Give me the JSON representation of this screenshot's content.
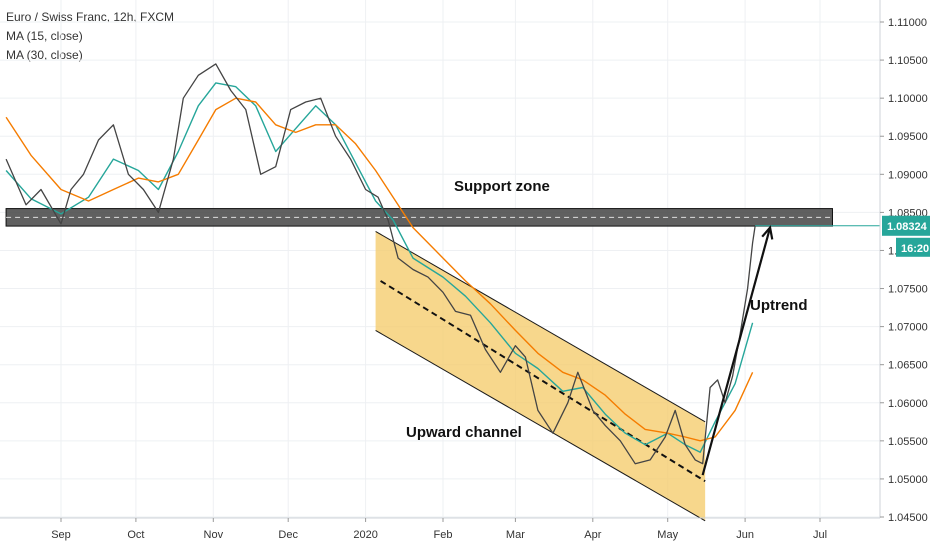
{
  "legend": {
    "symbol": "Euro / Swiss Franc, 12h, FXCM",
    "ma1": "MA (15, close)",
    "ma2": "MA (30, close)"
  },
  "chart_data": {
    "type": "line",
    "title": "Euro / Swiss Franc, 12h, FXCM",
    "x_labels": [
      "Sep",
      "Oct",
      "Nov",
      "Dec",
      "2020",
      "Feb",
      "Mar",
      "Apr",
      "May",
      "Jun",
      "Jul"
    ],
    "y_ticks": [
      "1.04500",
      "1.05000",
      "1.05500",
      "1.06000",
      "1.06500",
      "1.07000",
      "1.07500",
      "1.08000",
      "1.08500",
      "1.09000",
      "1.09500",
      "1.10000",
      "1.10500",
      "1.11000"
    ],
    "ylim": [
      1.045,
      1.113
    ],
    "series": [
      {
        "name": "MA (15, close)",
        "color": "#26a69a",
        "points": [
          [
            "2019-08-10",
            1.0905
          ],
          [
            "2019-08-20",
            1.0868
          ],
          [
            "2019-09-01",
            1.0848
          ],
          [
            "2019-09-12",
            1.087
          ],
          [
            "2019-09-22",
            1.092
          ],
          [
            "2019-10-02",
            1.0905
          ],
          [
            "2019-10-10",
            1.088
          ],
          [
            "2019-10-18",
            1.093
          ],
          [
            "2019-10-26",
            1.099
          ],
          [
            "2019-11-02",
            1.102
          ],
          [
            "2019-11-10",
            1.1015
          ],
          [
            "2019-11-18",
            1.099
          ],
          [
            "2019-11-26",
            1.093
          ],
          [
            "2019-12-04",
            1.096
          ],
          [
            "2019-12-12",
            1.099
          ],
          [
            "2019-12-20",
            1.0965
          ],
          [
            "2019-12-28",
            1.0915
          ],
          [
            "2020-01-05",
            1.0865
          ],
          [
            "2020-01-12",
            1.084
          ],
          [
            "2020-01-20",
            1.079
          ],
          [
            "2020-02-01",
            1.0765
          ],
          [
            "2020-02-10",
            1.074
          ],
          [
            "2020-02-20",
            1.0705
          ],
          [
            "2020-03-01",
            1.0665
          ],
          [
            "2020-03-10",
            1.0645
          ],
          [
            "2020-03-20",
            1.0615
          ],
          [
            "2020-03-28",
            1.062
          ],
          [
            "2020-04-06",
            1.0585
          ],
          [
            "2020-04-14",
            1.056
          ],
          [
            "2020-04-22",
            1.0545
          ],
          [
            "2020-05-01",
            1.056
          ],
          [
            "2020-05-08",
            1.0545
          ],
          [
            "2020-05-14",
            1.0535
          ],
          [
            "2020-05-20",
            1.0575
          ],
          [
            "2020-05-28",
            1.0625
          ],
          [
            "2020-06-04",
            1.0705
          ]
        ]
      },
      {
        "name": "MA (30, close)",
        "color": "#f57c00",
        "points": [
          [
            "2019-08-10",
            1.0975
          ],
          [
            "2019-08-20",
            1.0925
          ],
          [
            "2019-09-01",
            1.088
          ],
          [
            "2019-09-12",
            1.0865
          ],
          [
            "2019-09-22",
            1.088
          ],
          [
            "2019-10-02",
            1.0895
          ],
          [
            "2019-10-10",
            1.089
          ],
          [
            "2019-10-18",
            1.09
          ],
          [
            "2019-10-26",
            1.0945
          ],
          [
            "2019-11-02",
            1.0985
          ],
          [
            "2019-11-10",
            1.1
          ],
          [
            "2019-11-18",
            1.0995
          ],
          [
            "2019-11-26",
            1.0965
          ],
          [
            "2019-12-04",
            1.0955
          ],
          [
            "2019-12-12",
            1.0965
          ],
          [
            "2019-12-20",
            1.0965
          ],
          [
            "2019-12-28",
            1.094
          ],
          [
            "2020-01-05",
            1.0905
          ],
          [
            "2020-01-12",
            1.087
          ],
          [
            "2020-01-20",
            1.083
          ],
          [
            "2020-02-01",
            1.079
          ],
          [
            "2020-02-10",
            1.076
          ],
          [
            "2020-02-20",
            1.073
          ],
          [
            "2020-03-01",
            1.0695
          ],
          [
            "2020-03-10",
            1.0665
          ],
          [
            "2020-03-20",
            1.064
          ],
          [
            "2020-03-28",
            1.063
          ],
          [
            "2020-04-06",
            1.061
          ],
          [
            "2020-04-14",
            1.0585
          ],
          [
            "2020-04-22",
            1.0565
          ],
          [
            "2020-05-01",
            1.056
          ],
          [
            "2020-05-08",
            1.0555
          ],
          [
            "2020-05-14",
            1.055
          ],
          [
            "2020-05-20",
            1.0555
          ],
          [
            "2020-05-28",
            1.059
          ],
          [
            "2020-06-04",
            1.064
          ]
        ]
      },
      {
        "name": "price",
        "color": "#444444",
        "points": [
          [
            "2019-08-10",
            1.092
          ],
          [
            "2019-08-18",
            1.086
          ],
          [
            "2019-08-24",
            1.088
          ],
          [
            "2019-09-01",
            1.0835
          ],
          [
            "2019-09-05",
            1.088
          ],
          [
            "2019-09-10",
            1.09
          ],
          [
            "2019-09-16",
            1.0945
          ],
          [
            "2019-09-22",
            1.0965
          ],
          [
            "2019-09-28",
            1.09
          ],
          [
            "2019-10-04",
            1.088
          ],
          [
            "2019-10-10",
            1.085
          ],
          [
            "2019-10-16",
            1.092
          ],
          [
            "2019-10-20",
            1.1
          ],
          [
            "2019-10-26",
            1.103
          ],
          [
            "2019-11-02",
            1.1045
          ],
          [
            "2019-11-08",
            1.101
          ],
          [
            "2019-11-14",
            1.0985
          ],
          [
            "2019-11-20",
            1.09
          ],
          [
            "2019-11-26",
            1.091
          ],
          [
            "2019-12-02",
            1.0985
          ],
          [
            "2019-12-08",
            1.0995
          ],
          [
            "2019-12-14",
            1.1
          ],
          [
            "2019-12-20",
            1.095
          ],
          [
            "2019-12-26",
            1.092
          ],
          [
            "2020-01-01",
            1.088
          ],
          [
            "2020-01-06",
            1.087
          ],
          [
            "2020-01-10",
            1.084
          ],
          [
            "2020-01-14",
            1.079
          ],
          [
            "2020-01-20",
            1.0775
          ],
          [
            "2020-01-26",
            1.0765
          ],
          [
            "2020-02-01",
            1.0745
          ],
          [
            "2020-02-06",
            1.072
          ],
          [
            "2020-02-12",
            1.0715
          ],
          [
            "2020-02-18",
            1.067
          ],
          [
            "2020-02-24",
            1.064
          ],
          [
            "2020-03-01",
            1.0675
          ],
          [
            "2020-03-05",
            1.066
          ],
          [
            "2020-03-10",
            1.059
          ],
          [
            "2020-03-16",
            1.056
          ],
          [
            "2020-03-22",
            1.06
          ],
          [
            "2020-03-26",
            1.064
          ],
          [
            "2020-04-01",
            1.059
          ],
          [
            "2020-04-06",
            1.057
          ],
          [
            "2020-04-12",
            1.055
          ],
          [
            "2020-04-18",
            1.052
          ],
          [
            "2020-04-24",
            1.0525
          ],
          [
            "2020-04-30",
            1.0555
          ],
          [
            "2020-05-04",
            1.059
          ],
          [
            "2020-05-08",
            1.0545
          ],
          [
            "2020-05-12",
            1.0525
          ],
          [
            "2020-05-15",
            1.052
          ],
          [
            "2020-05-18",
            1.062
          ],
          [
            "2020-05-21",
            1.063
          ],
          [
            "2020-05-24",
            1.06
          ],
          [
            "2020-05-27",
            1.0635
          ],
          [
            "2020-05-30",
            1.069
          ],
          [
            "2020-06-02",
            1.075
          ],
          [
            "2020-06-04",
            1.081
          ],
          [
            "2020-06-05",
            1.0832
          ]
        ]
      }
    ],
    "support_zone": {
      "low": 1.0832,
      "high": 1.0855,
      "mid": 1.08435,
      "start": "2019-08-10",
      "end": "2020-07-06",
      "label": "Support zone"
    },
    "channel": {
      "label": "Upward channel",
      "upper": [
        [
          "2020-01-05",
          1.0825
        ],
        [
          "2020-05-16",
          1.0575
        ]
      ],
      "lower": [
        [
          "2020-01-05",
          1.0695
        ],
        [
          "2020-05-16",
          1.0445
        ]
      ],
      "mid": [
        [
          "2020-01-07",
          1.076
        ],
        [
          "2020-05-16",
          1.0497
        ]
      ]
    },
    "trend_line": {
      "label": "Uptrend",
      "points": [
        [
          "2020-05-15",
          1.0505
        ],
        [
          "2020-06-11",
          1.083
        ]
      ]
    },
    "price_tag": {
      "value": "1.08324",
      "time": "16:20"
    }
  }
}
